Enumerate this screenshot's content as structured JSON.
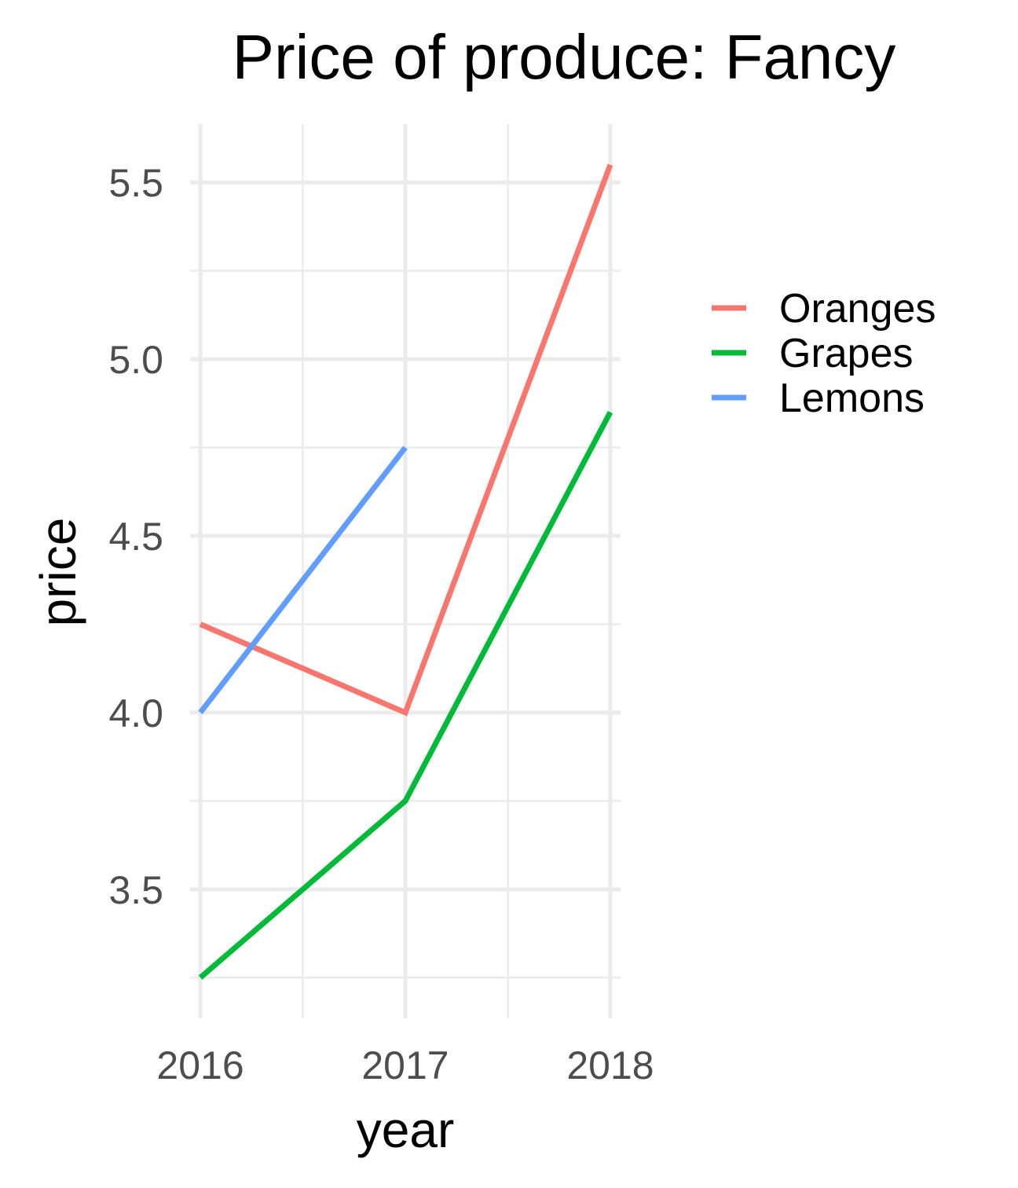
{
  "chart_data": {
    "type": "line",
    "title": "Price of produce: Fancy",
    "xlabel": "year",
    "ylabel": "price",
    "x": [
      2016,
      2017,
      2018
    ],
    "xticks": [
      "2016",
      "2017",
      "2018"
    ],
    "xlim": [
      2015.95,
      2018.05
    ],
    "yticks": [
      3.5,
      4.0,
      4.5,
      5.0,
      5.5
    ],
    "ytick_labels": [
      "3.5",
      "4.0",
      "4.5",
      "5.0",
      "5.5"
    ],
    "ylim": [
      3.135,
      5.665
    ],
    "grid": true,
    "legend_position": "right",
    "series": [
      {
        "name": "Oranges",
        "color": "#f8766d",
        "x": [
          2016,
          2017,
          2018
        ],
        "values": [
          4.25,
          4.0,
          5.55
        ]
      },
      {
        "name": "Grapes",
        "color": "#00ba38",
        "x": [
          2016,
          2017,
          2018
        ],
        "values": [
          3.25,
          3.75,
          4.85
        ]
      },
      {
        "name": "Lemons",
        "color": "#619cff",
        "x": [
          2016,
          2017
        ],
        "values": [
          4.0,
          4.75
        ]
      }
    ]
  }
}
